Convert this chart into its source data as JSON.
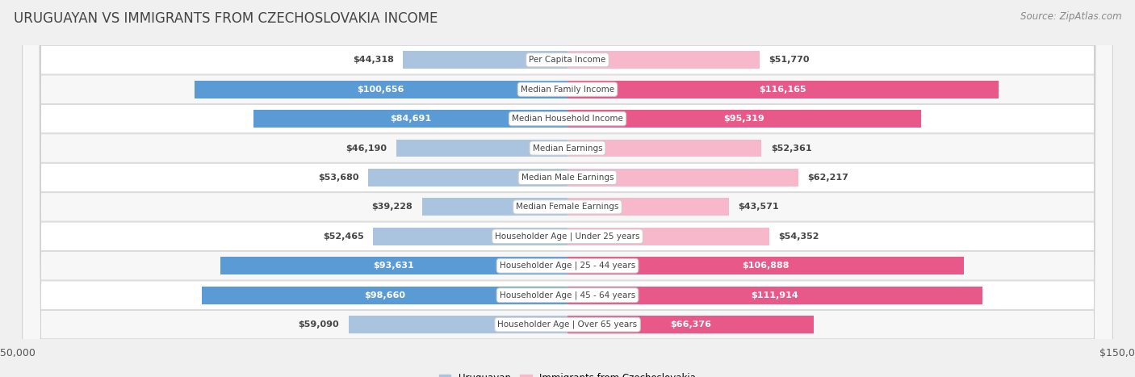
{
  "title": "URUGUAYAN VS IMMIGRANTS FROM CZECHOSLOVAKIA INCOME",
  "source": "Source: ZipAtlas.com",
  "categories": [
    "Per Capita Income",
    "Median Family Income",
    "Median Household Income",
    "Median Earnings",
    "Median Male Earnings",
    "Median Female Earnings",
    "Householder Age | Under 25 years",
    "Householder Age | 25 - 44 years",
    "Householder Age | 45 - 64 years",
    "Householder Age | Over 65 years"
  ],
  "uruguayan_values": [
    44318,
    100656,
    84691,
    46190,
    53680,
    39228,
    52465,
    93631,
    98660,
    59090
  ],
  "immigrant_values": [
    51770,
    116165,
    95319,
    52361,
    62217,
    43571,
    54352,
    106888,
    111914,
    66376
  ],
  "uruguayan_labels": [
    "$44,318",
    "$100,656",
    "$84,691",
    "$46,190",
    "$53,680",
    "$39,228",
    "$52,465",
    "$93,631",
    "$98,660",
    "$59,090"
  ],
  "immigrant_labels": [
    "$51,770",
    "$116,165",
    "$95,319",
    "$52,361",
    "$62,217",
    "$43,571",
    "$54,352",
    "$106,888",
    "$111,914",
    "$66,376"
  ],
  "uruguayan_color_light": "#aac4e0",
  "uruguayan_color_dark": "#5b9bd5",
  "immigrant_color_light": "#f7b8cc",
  "immigrant_color_dark": "#e8598a",
  "axis_limit": 150000,
  "bar_height": 0.6,
  "background_color": "#f0f0f0",
  "row_bg_odd": "#f7f7f7",
  "row_bg_even": "#ffffff",
  "legend_uruguayan": "Uruguayan",
  "legend_immigrant": "Immigrants from Czechoslovakia",
  "title_fontsize": 12,
  "label_fontsize": 8,
  "tick_fontsize": 9,
  "source_fontsize": 8.5,
  "white_label_threshold": 65000
}
